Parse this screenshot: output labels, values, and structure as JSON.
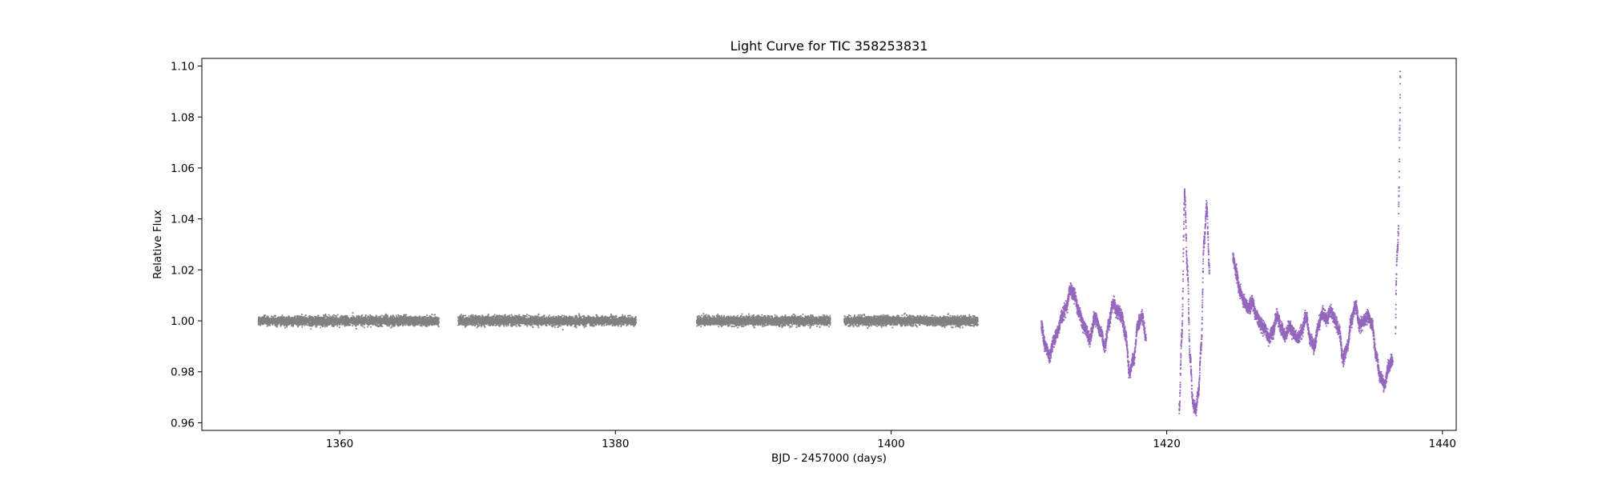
{
  "chart_data": {
    "type": "scatter",
    "title": "Light Curve for TIC 358253831",
    "xlabel": "BJD - 2457000 (days)",
    "ylabel": "Relative Flux",
    "xlim": [
      1350,
      1441
    ],
    "ylim": [
      0.957,
      1.103
    ],
    "x_ticks": [
      1360,
      1380,
      1400,
      1420,
      1440
    ],
    "x_tick_labels": [
      "1360",
      "1380",
      "1400",
      "1420",
      "1440"
    ],
    "y_ticks": [
      0.96,
      0.98,
      1.0,
      1.02,
      1.04,
      1.06,
      1.08,
      1.1
    ],
    "y_tick_labels": [
      "0.96",
      "0.98",
      "1.00",
      "1.02",
      "1.04",
      "1.06",
      "1.08",
      "1.10"
    ],
    "grid": false,
    "colors": {
      "segment_a": "#808080",
      "segment_b": "#9467bd"
    },
    "series": [
      {
        "color": "#808080",
        "segments": [
          {
            "x_range": [
              1354.1,
              1367.2
            ],
            "flux_center": 1.0,
            "flux_spread": 0.002
          },
          {
            "x_range": [
              1368.6,
              1381.5
            ],
            "flux_center": 1.0,
            "flux_spread": 0.002
          },
          {
            "x_range": [
              1385.9,
              1395.6
            ],
            "flux_center": 1.0,
            "flux_spread": 0.002
          },
          {
            "x_range": [
              1396.6,
              1406.3
            ],
            "flux_center": 1.0,
            "flux_spread": 0.002
          }
        ]
      },
      {
        "color": "#9467bd",
        "segments": [
          {
            "x": [
              1410.9,
              1411.2,
              1411.5,
              1411.8,
              1412.1,
              1412.4,
              1412.7,
              1413.0,
              1413.3,
              1413.6,
              1414.0,
              1414.4,
              1414.8,
              1415.2,
              1415.5,
              1415.8,
              1416.1,
              1416.4,
              1416.7,
              1417.0,
              1417.3,
              1417.6,
              1417.9,
              1418.2,
              1418.5
            ],
            "y": [
              0.998,
              0.99,
              0.986,
              0.992,
              0.996,
              1.002,
              1.005,
              1.012,
              1.01,
              1.004,
              0.998,
              0.993,
              1.001,
              0.996,
              0.99,
              0.999,
              1.007,
              1.004,
              1.002,
              0.995,
              0.98,
              0.985,
              0.998,
              1.002,
              0.994
            ]
          },
          {
            "x": [
              1420.9,
              1421.1,
              1421.3,
              1421.5,
              1421.7,
              1421.9,
              1422.1,
              1422.3,
              1422.5,
              1422.7,
              1422.9,
              1423.1
            ],
            "y": [
              0.965,
              0.995,
              1.05,
              1.02,
              0.985,
              0.968,
              0.965,
              0.972,
              0.99,
              1.03,
              1.045,
              1.02
            ]
          },
          {
            "x": [
              1424.8,
              1425.0,
              1425.3,
              1425.6,
              1425.9,
              1426.2,
              1426.5,
              1426.8,
              1427.1,
              1427.4,
              1427.7,
              1428.0,
              1428.3,
              1428.6,
              1428.9,
              1429.2,
              1429.5,
              1429.8,
              1430.1,
              1430.4,
              1430.7,
              1431.0,
              1431.3,
              1431.6,
              1431.9,
              1432.2,
              1432.5,
              1432.8,
              1433.1,
              1433.4,
              1433.7,
              1434.0,
              1434.3,
              1434.6,
              1434.9,
              1435.2,
              1435.5,
              1435.8,
              1436.1,
              1436.4
            ],
            "y": [
              1.025,
              1.02,
              1.012,
              1.008,
              1.005,
              1.007,
              1.002,
              0.999,
              0.997,
              0.993,
              0.996,
              1.002,
              0.997,
              0.994,
              0.998,
              0.995,
              0.993,
              0.996,
              1.002,
              0.993,
              0.99,
              0.998,
              1.003,
              1.001,
              1.004,
              1.0,
              0.996,
              0.985,
              0.99,
              1.0,
              1.006,
              0.998,
              1.0,
              1.002,
              0.998,
              0.986,
              0.978,
              0.975,
              0.982,
              0.985
            ]
          },
          {
            "x": [
              1436.6,
              1436.65,
              1436.7,
              1436.75,
              1436.8,
              1436.85,
              1436.9,
              1436.95
            ],
            "y": [
              0.997,
              1.015,
              1.025,
              1.028,
              1.035,
              1.05,
              1.075,
              1.097
            ]
          }
        ]
      }
    ]
  }
}
